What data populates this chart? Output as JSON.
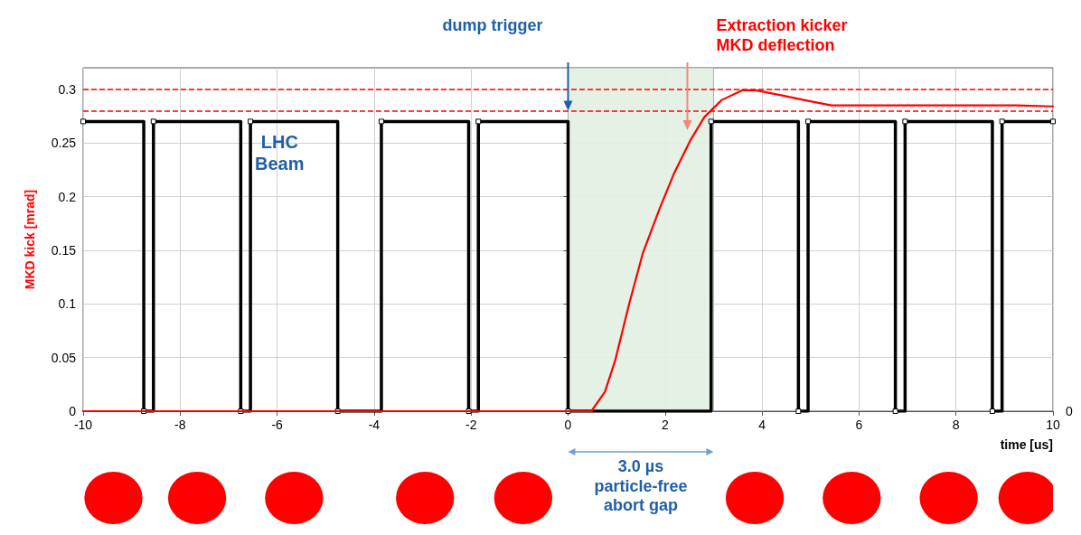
{
  "chart_data": {
    "type": "line",
    "ylabel": "MKD kick [mrad]",
    "xlabel": "time [us]",
    "xlim": [
      -10,
      10
    ],
    "xticks": [
      -10,
      -8,
      -6,
      -4,
      -2,
      0,
      2,
      4,
      6,
      8,
      10
    ],
    "ylim": [
      0,
      0.32
    ],
    "yticks": [
      0,
      0.05,
      0.1,
      0.15,
      0.2,
      0.25,
      0.3
    ],
    "grid": true,
    "series": [
      {
        "type": "step",
        "color": "#000000",
        "marker": "square",
        "x": [
          -10,
          -8.75,
          -8.55,
          -6.75,
          -6.55,
          -4.75,
          -3.85,
          -2.05,
          -1.85,
          0,
          2.95,
          4.75,
          4.95,
          6.75,
          6.95,
          8.75,
          8.95,
          10
        ],
        "values": [
          0.27,
          0,
          0.27,
          0,
          0.27,
          0,
          0.27,
          0,
          0.27,
          0,
          0.27,
          0,
          0.27,
          0,
          0.27,
          0,
          0.27,
          0.27
        ]
      },
      {
        "color": "#ff0000",
        "x": [
          -10,
          0.48,
          0.76,
          0.97,
          1.26,
          1.54,
          1.89,
          2.18,
          2.53,
          2.81,
          3.17,
          3.59,
          3.87,
          4.44,
          4.86,
          5.43,
          6.06,
          9.24,
          10
        ],
        "values": [
          0,
          0,
          0.018,
          0.047,
          0.1,
          0.147,
          0.189,
          0.221,
          0.253,
          0.274,
          0.29,
          0.299,
          0.299,
          0.294,
          0.29,
          0.285,
          0.285,
          0.285,
          0.284
        ]
      }
    ],
    "ref_lines": [
      {
        "axis": "y",
        "value": 0.3,
        "color": "#ff0000",
        "line_style": "dashed"
      },
      {
        "axis": "y",
        "value": 0.28,
        "color": "#ff0000",
        "line_style": "dashed"
      }
    ],
    "bands": [
      {
        "axis": "x",
        "from": 0,
        "to": 3,
        "label": "3.0 µs\nparticle-free\nabort gap",
        "color": "#e3f0e3"
      }
    ],
    "annotations": [
      "dump trigger",
      "Extraction kicker\nMKD deflection",
      "LHC\nBeam",
      "0"
    ]
  }
}
